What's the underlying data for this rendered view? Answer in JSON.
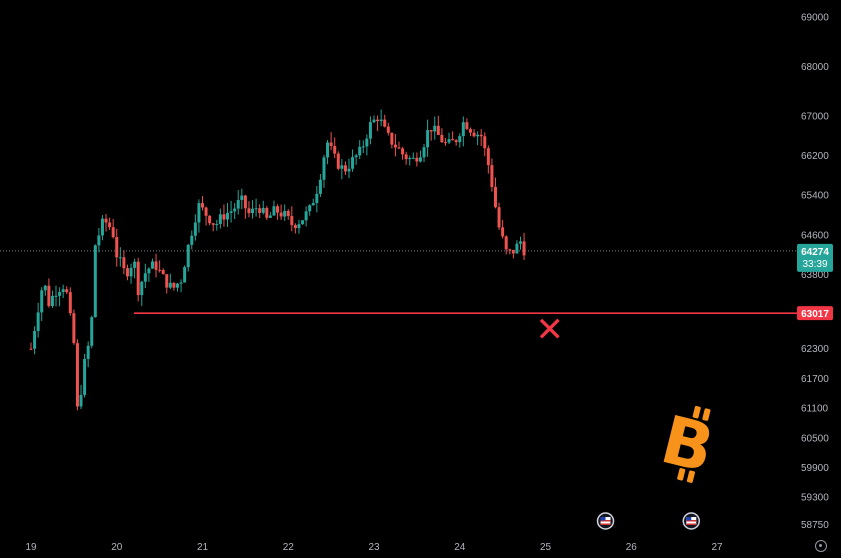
{
  "chart_data": {
    "type": "candlestick",
    "symbol_icon": "bitcoin-logo",
    "x_axis": {
      "ticks": [
        "19",
        "20",
        "21",
        "22",
        "23",
        "24",
        "25",
        "26",
        "27"
      ]
    },
    "y_axis": {
      "ticks": [
        69000,
        68000,
        67000,
        66200,
        65400,
        64600,
        63800,
        63000,
        62300,
        61700,
        61100,
        60500,
        59900,
        59300,
        58750
      ],
      "range": [
        58600,
        69300
      ]
    },
    "current_price": {
      "value": "64274",
      "countdown": "33:39",
      "price": 64274
    },
    "support_line": {
      "label": "63017",
      "value": 63017,
      "from_x": 20.2
    },
    "close_path": [
      [
        19.0,
        62300
      ],
      [
        19.05,
        62800
      ],
      [
        19.1,
        63300
      ],
      [
        19.15,
        63700
      ],
      [
        19.2,
        63200
      ],
      [
        19.3,
        63500
      ],
      [
        19.4,
        63600
      ],
      [
        19.5,
        62400
      ],
      [
        19.55,
        60800
      ],
      [
        19.6,
        61800
      ],
      [
        19.7,
        62600
      ],
      [
        19.75,
        64400
      ],
      [
        19.85,
        64900
      ],
      [
        19.95,
        64700
      ],
      [
        20.0,
        64200
      ],
      [
        20.05,
        64000
      ],
      [
        20.1,
        63800
      ],
      [
        20.2,
        64100
      ],
      [
        20.25,
        63500
      ],
      [
        20.35,
        63900
      ],
      [
        20.45,
        64000
      ],
      [
        20.55,
        63700
      ],
      [
        20.65,
        63500
      ],
      [
        20.75,
        63700
      ],
      [
        20.85,
        64500
      ],
      [
        20.95,
        65200
      ],
      [
        21.05,
        65000
      ],
      [
        21.15,
        64800
      ],
      [
        21.25,
        65000
      ],
      [
        21.35,
        65100
      ],
      [
        21.45,
        65300
      ],
      [
        21.55,
        65000
      ],
      [
        21.65,
        65200
      ],
      [
        21.75,
        64900
      ],
      [
        21.85,
        65100
      ],
      [
        21.95,
        65000
      ],
      [
        22.05,
        64800
      ],
      [
        22.15,
        64900
      ],
      [
        22.25,
        65100
      ],
      [
        22.35,
        65600
      ],
      [
        22.45,
        66500
      ],
      [
        22.55,
        66100
      ],
      [
        22.65,
        65900
      ],
      [
        22.75,
        66100
      ],
      [
        22.85,
        66300
      ],
      [
        22.95,
        66800
      ],
      [
        23.05,
        67000
      ],
      [
        23.15,
        66600
      ],
      [
        23.25,
        66400
      ],
      [
        23.35,
        66200
      ],
      [
        23.45,
        66100
      ],
      [
        23.55,
        66300
      ],
      [
        23.65,
        66800
      ],
      [
        23.75,
        66600
      ],
      [
        23.85,
        66400
      ],
      [
        23.95,
        66500
      ],
      [
        24.05,
        66900
      ],
      [
        24.15,
        66700
      ],
      [
        24.25,
        66600
      ],
      [
        24.35,
        65900
      ],
      [
        24.45,
        64800
      ],
      [
        24.55,
        64200
      ],
      [
        24.65,
        64300
      ],
      [
        24.7,
        64500
      ],
      [
        24.75,
        64300
      ]
    ],
    "marker": {
      "symbol": "✕",
      "name": "cross-mark",
      "x": 25.05,
      "y": 62700,
      "color": "#f23645"
    },
    "event_flags": [
      {
        "name": "us-flag-icon",
        "x": 25.7
      },
      {
        "name": "us-flag-icon",
        "x": 26.7
      }
    ],
    "colors": {
      "up": "#26a69a",
      "down": "#ef5350",
      "price_tag": "#26a69a",
      "support": "#f23645",
      "background": "#000000",
      "bitcoin": "#f7931a"
    }
  }
}
